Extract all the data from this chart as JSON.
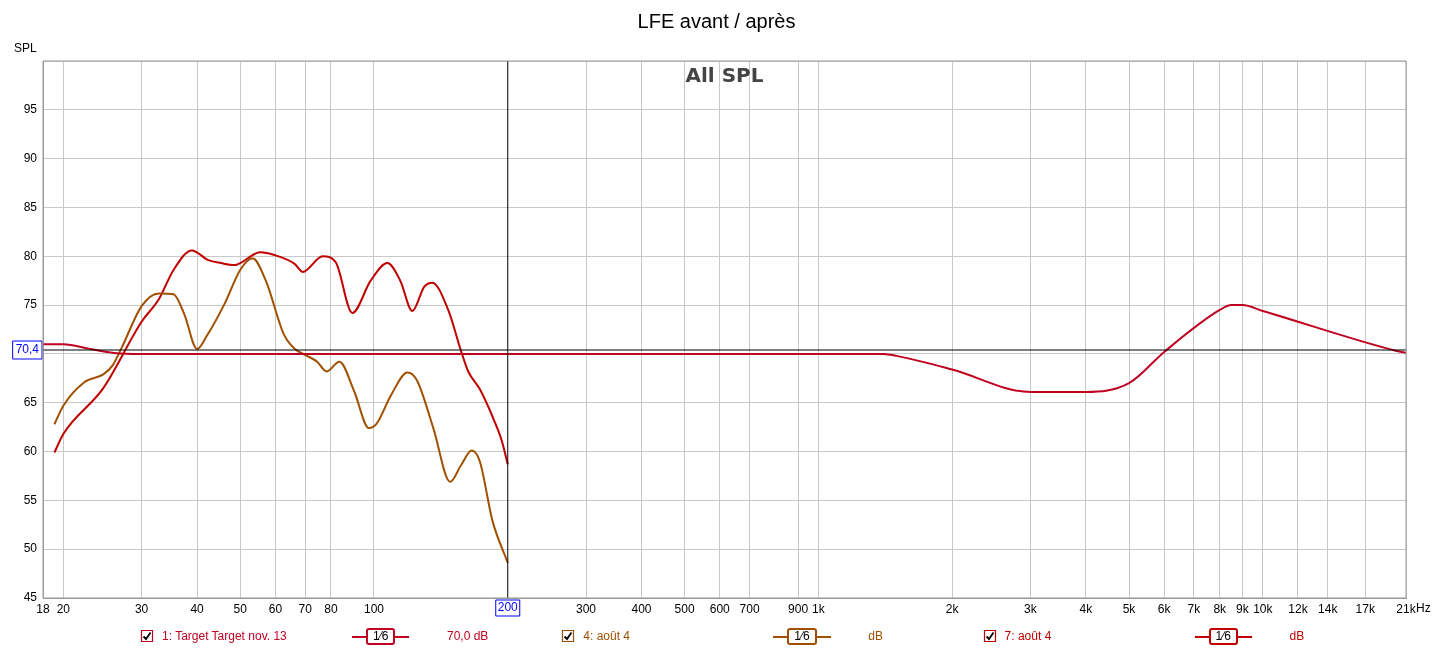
{
  "chart_data": {
    "type": "line",
    "title": "LFE avant / après",
    "ylabel": "SPL",
    "log": "x",
    "grid": true,
    "legend": "bottom",
    "marker": "none",
    "line_style": "solid",
    "xlim": [
      18,
      21000
    ],
    "ylim": [
      45,
      100
    ],
    "xticks": [
      18,
      20,
      30,
      40,
      50,
      60,
      70,
      80,
      100,
      300,
      400,
      500,
      600,
      700,
      {
        "value": 900,
        "label": "900"
      },
      {
        "value": 1000,
        "label": "1k"
      },
      {
        "value": 2000,
        "label": "2k"
      },
      {
        "value": 3000,
        "label": "3k"
      },
      {
        "value": 4000,
        "label": "4k"
      },
      {
        "value": 5000,
        "label": "5k"
      },
      {
        "value": 6000,
        "label": "6k"
      },
      {
        "value": 7000,
        "label": "7k"
      },
      {
        "value": 8000,
        "label": "8k"
      },
      {
        "value": 9000,
        "label": "9k"
      },
      {
        "value": 10000,
        "label": "10k"
      },
      {
        "value": 12000,
        "label": "12k"
      },
      {
        "value": 14000,
        "label": "14k"
      },
      {
        "value": 17000,
        "label": "17k"
      },
      {
        "value": 21000,
        "label": "21k"
      }
    ],
    "xlabel": "Hz",
    "yticks": [
      45,
      50,
      55,
      60,
      65,
      {
        "value": 70,
        "label": null
      },
      75,
      80,
      85,
      90,
      95,
      {
        "value": 100,
        "label": null
      }
    ],
    "ref_lines": [
      {
        "axis": "y",
        "value": 70.4,
        "label": "70,4",
        "color": "#000000"
      },
      {
        "axis": "x",
        "value": 200,
        "label": "200",
        "color": "#000000"
      }
    ],
    "annotations": [
      "All SPL",
      "1⁄6",
      "70,0 dB",
      "1⁄6",
      "dB",
      "1⁄6",
      "dB"
    ],
    "series": [
      {
        "name": "1: Target Target nov. 13",
        "color": "#c00020",
        "x": [
          18,
          20,
          23,
          26,
          30,
          100,
          1000,
          1400,
          1500,
          2000,
          3000,
          4000,
          5000,
          6000,
          8000,
          8500,
          9000,
          10000,
          20000,
          21000
        ],
        "values": [
          71.0,
          71.0,
          70.5,
          70.1,
          70.0,
          70.0,
          70.0,
          70.0,
          69.8,
          68.4,
          66.1,
          66.1,
          67.0,
          70.2,
          74.5,
          75.0,
          75.0,
          74.4,
          70.3,
          70.1
        ]
      },
      {
        "name": "4: août 4",
        "color": "#a05000",
        "x": [
          19.1,
          20,
          22.3,
          24.6,
          25.8,
          27.1,
          30,
          32.8,
          35.4,
          37.4,
          40,
          42,
          46.2,
          50,
          53.3,
          57.1,
          62.7,
          66.4,
          70,
          74.5,
          78.2,
          83.6,
          90.2,
          97.4,
          101.2,
          109.3,
          119,
          124.9,
          136,
          148.4,
          157,
          166,
          173,
          184.8,
          200
        ],
        "values": [
          62.8,
          64.7,
          67.1,
          67.9,
          68.8,
          70.7,
          74.9,
          76.2,
          76.1,
          74.1,
          70.5,
          71.8,
          75.2,
          78.6,
          79.8,
          77.5,
          72.0,
          70.5,
          69.9,
          69.2,
          68.2,
          69.2,
          66.2,
          62.4,
          62.8,
          65.8,
          68.1,
          67.3,
          62.4,
          56.9,
          58.6,
          60.1,
          59.0,
          52.9,
          48.6
        ]
      },
      {
        "name": "7: août 4",
        "color": "#c00000",
        "x": [
          19.1,
          20,
          24.6,
          30,
          32.8,
          35.4,
          38.9,
          42.4,
          45.3,
          48.5,
          55.4,
          60,
          66.4,
          69.1,
          76.7,
          82,
          89.4,
          98.3,
          107.2,
          114.6,
          122,
          129.8,
          135.3,
          146.9,
          157,
          163,
          173,
          186.7,
          193.9,
          200
        ],
        "values": [
          59.9,
          61.8,
          66.5,
          73.3,
          75.6,
          78.6,
          80.6,
          79.6,
          79.3,
          79.1,
          80.4,
          80.1,
          79.2,
          78.4,
          80.0,
          79.4,
          74.2,
          77.5,
          79.3,
          77.5,
          74.4,
          76.9,
          77.3,
          74.5,
          70.3,
          68.2,
          66.4,
          63.1,
          61.1,
          58.7
        ]
      }
    ]
  }
}
